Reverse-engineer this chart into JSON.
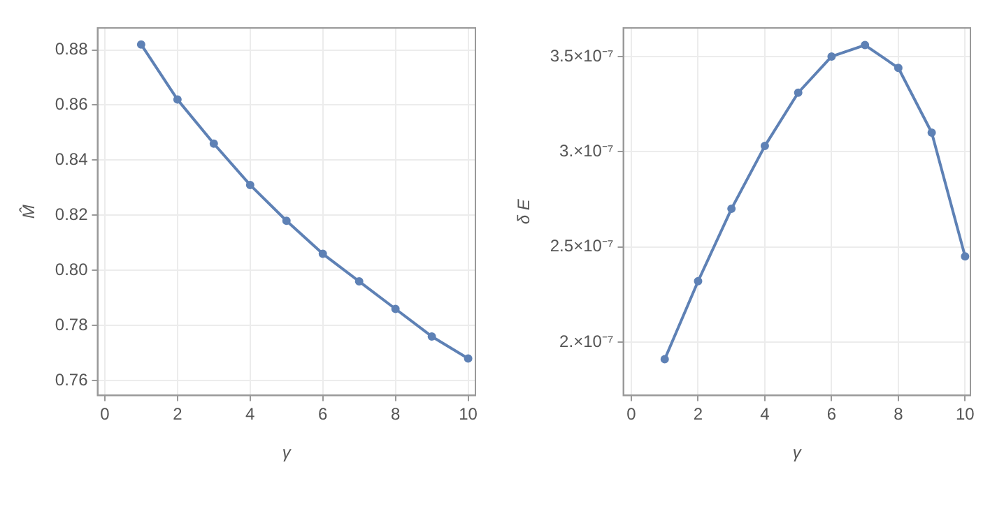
{
  "chart_data": [
    {
      "type": "line",
      "xlabel": "γ",
      "ylabel": "M̂",
      "x": [
        1,
        2,
        3,
        4,
        5,
        6,
        7,
        8,
        9,
        10
      ],
      "series": [
        {
          "color": "#5e81b5",
          "values": [
            0.882,
            0.862,
            0.846,
            0.831,
            0.818,
            0.806,
            0.796,
            0.786,
            0.776,
            0.768
          ]
        }
      ],
      "xlim": [
        -0.2,
        10.2
      ],
      "xticks": [
        0,
        2,
        4,
        6,
        8,
        10
      ],
      "ylim": [
        0.7546,
        0.888
      ],
      "yticks": [
        0.76,
        0.78,
        {
          "value": 0.8,
          "label": "0.80"
        },
        0.82,
        0.84,
        0.86,
        0.88
      ],
      "grid": true,
      "marker": "circle",
      "line_style": "solid"
    },
    {
      "type": "line",
      "xlabel": "γ",
      "ylabel": "δ E",
      "x": [
        1,
        2,
        3,
        4,
        5,
        6,
        7,
        8,
        9,
        10
      ],
      "series": [
        {
          "color": "#5e81b5",
          "values": [
            1.91e-07,
            2.32e-07,
            2.7e-07,
            3.03e-07,
            3.31e-07,
            3.5e-07,
            3.56e-07,
            3.44e-07,
            3.1e-07,
            2.45e-07
          ]
        }
      ],
      "xlim": [
        -0.24,
        10.16
      ],
      "xticks": [
        0,
        2,
        4,
        6,
        8,
        10
      ],
      "ylim": [
        1.72e-07,
        3.65e-07
      ],
      "yticks": [
        {
          "value": 2e-07,
          "label": "2.×10⁻⁷"
        },
        {
          "value": 2.5e-07,
          "label": "2.5×10⁻⁷"
        },
        {
          "value": 3e-07,
          "label": "3.×10⁻⁷"
        },
        {
          "value": 3.5e-07,
          "label": "3.5×10⁻⁷"
        }
      ],
      "grid": true,
      "marker": "circle",
      "line_style": "solid"
    }
  ]
}
